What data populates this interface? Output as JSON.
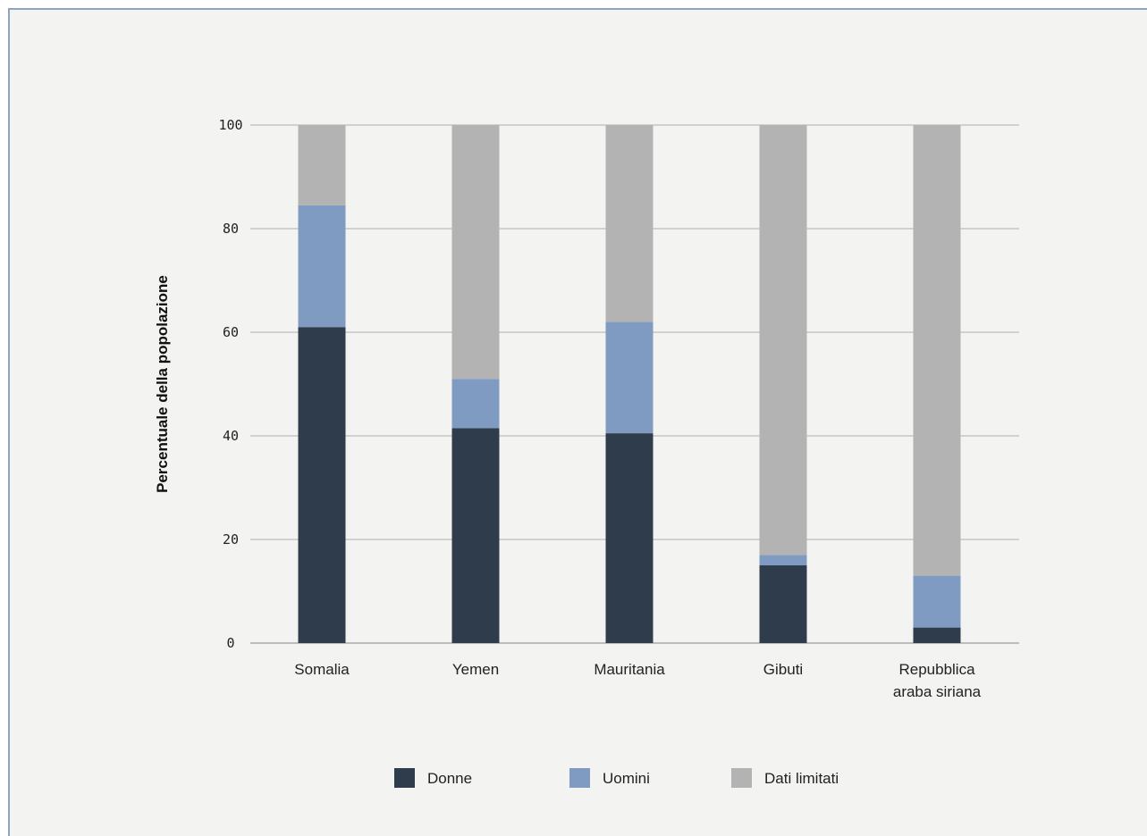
{
  "chart_data": {
    "type": "bar",
    "stacked": true,
    "ylabel": "Percentuale della popolazione",
    "xlabel": "",
    "ylim": [
      0,
      100
    ],
    "yticks": [
      0,
      20,
      40,
      60,
      80,
      100
    ],
    "categories": [
      [
        "Somalia"
      ],
      [
        "Yemen"
      ],
      [
        "Mauritania"
      ],
      [
        "Gibuti"
      ],
      [
        "Repubblica",
        "araba siriana"
      ]
    ],
    "series": [
      {
        "name": "Donne",
        "color": "#2f3c4b",
        "values": [
          61,
          41.5,
          40.5,
          15,
          3
        ]
      },
      {
        "name": "Uomini",
        "color": "#7f9bc1",
        "values": [
          23.5,
          9.5,
          21.5,
          2,
          10
        ]
      },
      {
        "name": "Dati limitati",
        "color": "#b3b3b3",
        "values": [
          15.5,
          49,
          38,
          83,
          87
        ]
      }
    ],
    "grid": true,
    "legend_position": "bottom"
  }
}
